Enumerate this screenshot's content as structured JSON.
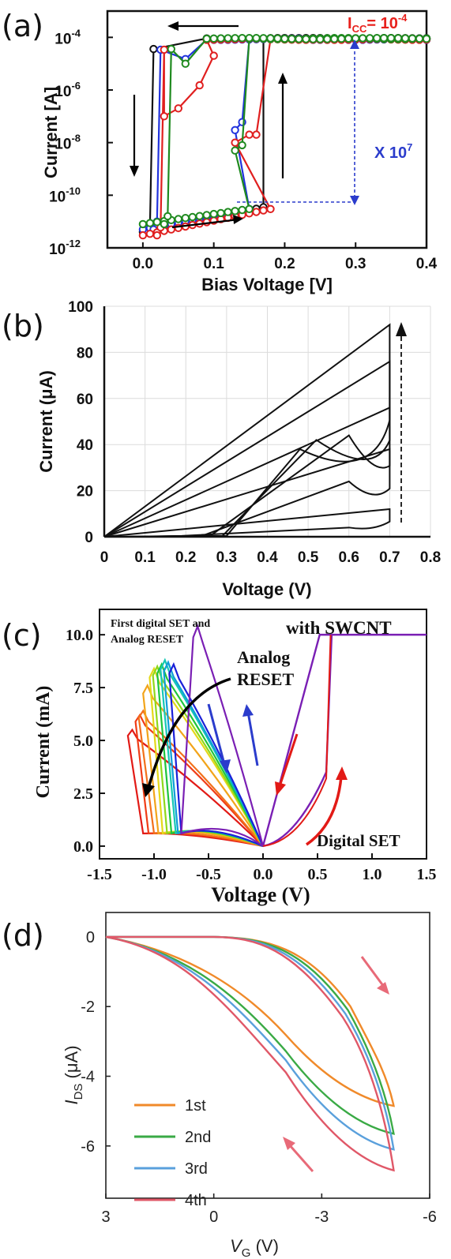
{
  "panels": {
    "a": {
      "label": "(a)"
    },
    "b": {
      "label": "(b)"
    },
    "c": {
      "label": "(c)"
    },
    "d": {
      "label": "(d)"
    }
  },
  "chart_data": [
    {
      "type": "line",
      "xlabel": "Bias Voltage [V]",
      "ylabel": "Current [A]",
      "y_scale": "log",
      "xlim": [
        -0.05,
        0.4
      ],
      "ylim": [
        1e-12,
        0.001
      ],
      "xticks": [
        "0.0",
        "0.1",
        "0.2",
        "0.3",
        "0.4"
      ],
      "yticks": [
        {
          "base": "10",
          "exp": "-12",
          "value": 1e-12
        },
        {
          "base": "10",
          "exp": "-10",
          "value": 1e-10
        },
        {
          "base": "10",
          "exp": "-8",
          "value": 1e-08
        },
        {
          "base": "10",
          "exp": "-6",
          "value": 1e-06
        },
        {
          "base": "10",
          "exp": "-4",
          "value": 0.0001
        }
      ],
      "annotations": {
        "compliance": {
          "main": "I",
          "sub": "CC",
          "eq": "= 10",
          "exp": "-4",
          "color": "#e8201c"
        },
        "ratio": {
          "main": "X 10",
          "exp": "7",
          "color": "#2b3ccc"
        }
      },
      "series": [
        {
          "color": "#111111",
          "set_v": 0.17,
          "reset_v": 0.01,
          "lrs": 9e-05,
          "hrs_start": 4e-12,
          "hrs_end": 3.5e-11,
          "reset_steps": []
        },
        {
          "color": "#2233dd",
          "set_v": 0.15,
          "reset_v": 0.02,
          "lrs": 8.5e-05,
          "hrs_start": 5e-12,
          "hrs_end": 3e-11,
          "reset_steps": [
            [
              0.06,
              1.5e-05
            ]
          ],
          "set_steps": [
            [
              0.13,
              3e-08
            ],
            [
              0.14,
              6e-08
            ]
          ]
        },
        {
          "color": "#e01f1f",
          "set_v": 0.18,
          "reset_v": 0.025,
          "lrs": 8.5e-05,
          "hrs_start": 3e-12,
          "hrs_end": 3e-11,
          "reset_steps": [
            [
              0.1,
              2e-05
            ],
            [
              0.08,
              1.5e-06
            ],
            [
              0.05,
              2e-07
            ],
            [
              0.03,
              1e-07
            ]
          ],
          "set_steps": [
            [
              0.13,
              1e-08
            ],
            [
              0.15,
              2e-08
            ],
            [
              0.16,
              2e-08
            ]
          ]
        },
        {
          "color": "#1f8a1f",
          "set_v": 0.15,
          "reset_v": 0.035,
          "lrs": 9e-05,
          "hrs_start": 8e-12,
          "hrs_end": 3e-11,
          "reset_steps": [
            [
              0.06,
              1e-05
            ]
          ],
          "set_steps": [
            [
              0.13,
              5e-09
            ],
            [
              0.14,
              8e-09
            ]
          ]
        }
      ]
    },
    {
      "type": "line",
      "xlabel": "Voltage (V)",
      "ylabel": "Current (μA)",
      "xlim": [
        0,
        0.8
      ],
      "ylim": [
        0,
        100
      ],
      "xticks": [
        "0",
        "0.1",
        "0.2",
        "0.3",
        "0.4",
        "0.5",
        "0.6",
        "0.7",
        "0.8"
      ],
      "yticks": [
        "0",
        "20",
        "40",
        "60",
        "80",
        "100"
      ],
      "grid": true,
      "series": [
        {
          "peak_i": 12,
          "start_v": 0.19,
          "mid_v": 0.6,
          "mid_i": 4
        },
        {
          "peak_i": 38,
          "start_v": 0.24,
          "mid_v": 0.6,
          "mid_i": 24
        },
        {
          "peak_i": 56,
          "start_v": 0.26,
          "mid_v": 0.6,
          "mid_i": 44
        },
        {
          "peak_i": 76,
          "start_v": 0.29,
          "mid_v": 0.52,
          "mid_i": 42
        },
        {
          "peak_i": 92,
          "start_v": 0.3,
          "mid_v": 0.48,
          "mid_i": 38
        }
      ]
    },
    {
      "type": "line",
      "xlabel": "Voltage (V)",
      "ylabel": "Current (mA)",
      "xlim": [
        -1.5,
        1.5
      ],
      "ylim": [
        -0.6,
        11.2
      ],
      "xticks": [
        "-1.5",
        "-1.0",
        "-0.5",
        "0.0",
        "0.5",
        "1.0",
        "1.5"
      ],
      "yticks": [
        "0.0",
        "2.5",
        "5.0",
        "7.5",
        "10.0"
      ],
      "annotations": {
        "first_line1": "First digital SET and",
        "first_line2": "Analog RESET",
        "swcnt": "with SWCNT",
        "analog1": "Analog",
        "analog2": "RESET",
        "digital": "Digital SET"
      },
      "purple_set": {
        "color": "#7a1fb4",
        "compliance": 10.0,
        "set_v": 0.63
      },
      "reset_sweeps": [
        {
          "color": "#7a1fb4",
          "peak_v": -0.6,
          "peak_i": 10.4,
          "end_v": -0.75
        },
        {
          "color": "#1a20d8",
          "peak_v": -0.82,
          "peak_i": 8.6,
          "end_v": -0.75
        },
        {
          "color": "#0f9ed8",
          "peak_v": -0.87,
          "peak_i": 8.7,
          "end_v": -0.78
        },
        {
          "color": "#16c8b4",
          "peak_v": -0.9,
          "peak_i": 8.8,
          "end_v": -0.8
        },
        {
          "color": "#1fc43c",
          "peak_v": -0.93,
          "peak_i": 8.6,
          "end_v": -0.84
        },
        {
          "color": "#8fd81a",
          "peak_v": -0.97,
          "peak_i": 8.5,
          "end_v": -0.88
        },
        {
          "color": "#e4d81a",
          "peak_v": -1.0,
          "peak_i": 8.4,
          "end_v": -0.92
        },
        {
          "color": "#f2a41a",
          "peak_v": -1.06,
          "peak_i": 7.6,
          "end_v": -0.96
        },
        {
          "color": "#f2701a",
          "peak_v": -1.1,
          "peak_i": 6.4,
          "end_v": -1.0
        },
        {
          "color": "#f03c16",
          "peak_v": -1.13,
          "peak_i": 6.2,
          "end_v": -1.05
        },
        {
          "color": "#e21a16",
          "peak_v": -1.2,
          "peak_i": 5.5,
          "end_v": -1.1
        }
      ]
    },
    {
      "type": "line",
      "xlabel": "V",
      "xlabel_sub": "G",
      "xlabel_unit": " (V)",
      "ylabel": "I",
      "ylabel_sub": "DS",
      "ylabel_unit": " (μA)",
      "xlim": [
        3,
        -6
      ],
      "ylim": [
        -7.5,
        0.7
      ],
      "xticks": [
        "3",
        "0",
        "-3",
        "-6"
      ],
      "yticks": [
        "0",
        "-2",
        "-4",
        "-6"
      ],
      "legend_position": "lower-left",
      "series": [
        {
          "name": "1st",
          "color": "#f08a2a",
          "min_i": -4.85
        },
        {
          "name": "2nd",
          "color": "#3aaa45",
          "min_i": -5.65
        },
        {
          "name": "3rd",
          "color": "#5aa0dc",
          "min_i": -6.1
        },
        {
          "name": "4th",
          "color": "#e05868",
          "min_i": -6.7
        }
      ]
    }
  ]
}
